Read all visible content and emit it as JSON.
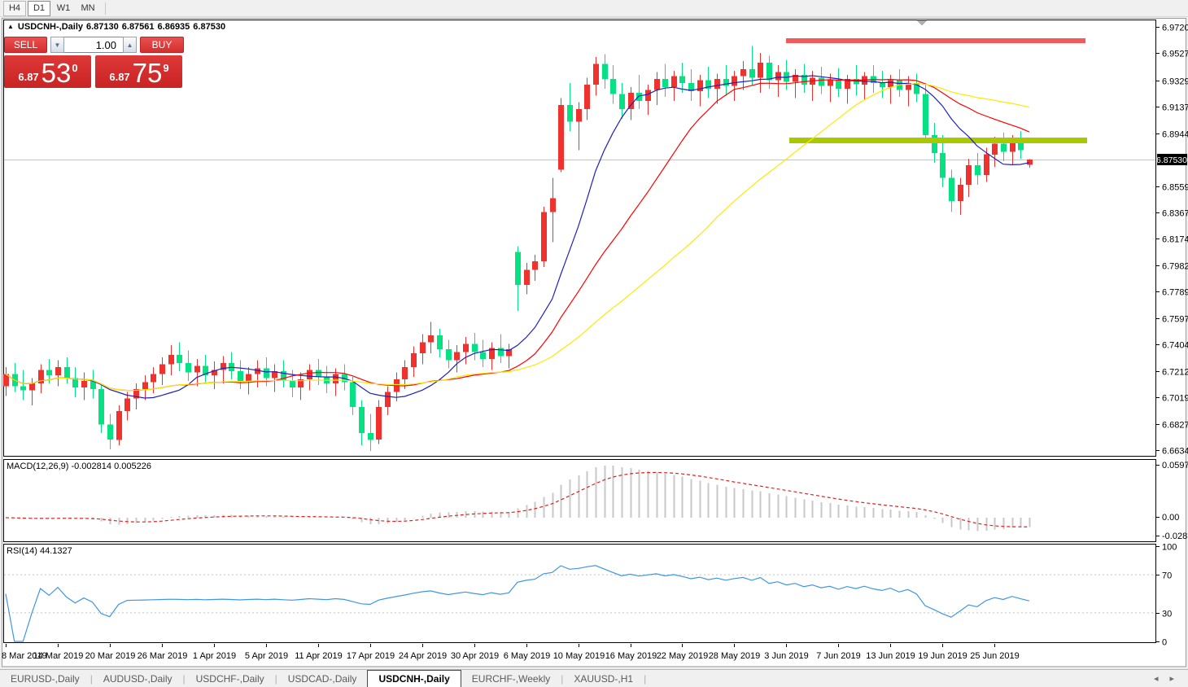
{
  "toolbar": {
    "timeframes": [
      {
        "label": "H4",
        "active": false
      },
      {
        "label": "D1",
        "active": true
      },
      {
        "label": "W1",
        "active": false
      },
      {
        "label": "MN",
        "active": false
      }
    ]
  },
  "window": {
    "symbol": "USDCNH-,Daily",
    "open": "6.87130",
    "high": "6.87561",
    "low": "6.86935",
    "close": "6.87530"
  },
  "trade_panel": {
    "sell_label": "SELL",
    "buy_label": "BUY",
    "volume": "1.00",
    "sell_price": {
      "prefix": "6.87",
      "big": "53",
      "sup": "0"
    },
    "buy_price": {
      "prefix": "6.87",
      "big": "75",
      "sup": "9"
    }
  },
  "indicator_labels": {
    "macd": "MACD(12,26,9) -0.002814 0.005226",
    "rsi": "RSI(14) 44.1327"
  },
  "axes": {
    "price_ticks": [
      "6.97200",
      "6.95275",
      "6.93295",
      "6.91370",
      "6.89445",
      "6.85595",
      "6.83670",
      "6.81745",
      "6.79820",
      "6.77895",
      "6.75970",
      "6.74045",
      "6.72120",
      "6.70195",
      "6.68270",
      "6.66345"
    ],
    "current_price": "6.87530",
    "macd_ticks": [
      "0.059758",
      "0.00",
      "-0.02816"
    ],
    "rsi_ticks": [
      "100",
      "70",
      "30",
      "0"
    ]
  },
  "tabbar": {
    "tabs": [
      {
        "label": "EURUSD-,Daily",
        "active": false
      },
      {
        "label": "AUDUSD-,Daily",
        "active": false
      },
      {
        "label": "USDCHF-,Daily",
        "active": false
      },
      {
        "label": "USDCAD-,Daily",
        "active": false
      },
      {
        "label": "USDCNH-,Daily",
        "active": true
      },
      {
        "label": "EURCHF-,Weekly",
        "active": false
      },
      {
        "label": "XAUUSD-,H1",
        "active": false
      }
    ],
    "scroll_left_icon": "◂",
    "scroll_right_icon": "▸"
  },
  "chart_data": {
    "type": "candlestick",
    "symbol": "USDCNH",
    "timeframe": "Daily",
    "title": "USDCNH-,Daily 6.87130 6.87561 6.86935 6.87530",
    "y_range": [
      6.66345,
      6.972
    ],
    "current_price": 6.8753,
    "up_color": "#F0322E",
    "down_color": "#06E183",
    "x_tick_interval": 6,
    "x_tick_labels": [
      "8 Mar 2019",
      "14 Mar 2019",
      "20 Mar 2019",
      "26 Mar 2019",
      "1 Apr 2019",
      "5 Apr 2019",
      "11 Apr 2019",
      "17 Apr 2019",
      "24 Apr 2019",
      "30 Apr 2019",
      "6 May 2019",
      "10 May 2019",
      "16 May 2019",
      "22 May 2019",
      "28 May 2019",
      "3 Jun 2019",
      "7 Jun 2019",
      "13 Jun 2019",
      "19 Jun 2019",
      "25 Jun 2019"
    ],
    "candles": [
      [
        6.71,
        6.724,
        6.703,
        6.719
      ],
      [
        6.719,
        6.727,
        6.706,
        6.71
      ],
      [
        6.71,
        6.722,
        6.7,
        6.707
      ],
      [
        6.707,
        6.716,
        6.696,
        6.712
      ],
      [
        6.712,
        6.726,
        6.705,
        6.722
      ],
      [
        6.722,
        6.73,
        6.712,
        6.718
      ],
      [
        6.718,
        6.729,
        6.71,
        6.724
      ],
      [
        6.724,
        6.731,
        6.712,
        6.716
      ],
      [
        6.716,
        6.724,
        6.702,
        6.709
      ],
      [
        6.709,
        6.72,
        6.7,
        6.714
      ],
      [
        6.714,
        6.722,
        6.701,
        6.708
      ],
      [
        6.708,
        6.712,
        6.676,
        6.682
      ],
      [
        6.682,
        6.69,
        6.664,
        6.671
      ],
      [
        6.671,
        6.696,
        6.667,
        6.692
      ],
      [
        6.692,
        6.706,
        6.685,
        6.701
      ],
      [
        6.701,
        6.712,
        6.693,
        6.708
      ],
      [
        6.708,
        6.718,
        6.7,
        6.713
      ],
      [
        6.713,
        6.724,
        6.705,
        6.719
      ],
      [
        6.719,
        6.731,
        6.711,
        6.726
      ],
      [
        6.726,
        6.74,
        6.718,
        6.733
      ],
      [
        6.733,
        6.742,
        6.721,
        6.727
      ],
      [
        6.727,
        6.736,
        6.714,
        6.72
      ],
      [
        6.72,
        6.73,
        6.71,
        6.725
      ],
      [
        6.725,
        6.733,
        6.713,
        6.718
      ],
      [
        6.718,
        6.728,
        6.708,
        6.722
      ],
      [
        6.722,
        6.732,
        6.712,
        6.727
      ],
      [
        6.727,
        6.735,
        6.715,
        6.721
      ],
      [
        6.721,
        6.729,
        6.708,
        6.714
      ],
      [
        6.714,
        6.724,
        6.704,
        6.719
      ],
      [
        6.719,
        6.729,
        6.709,
        6.723
      ],
      [
        6.723,
        6.731,
        6.71,
        6.716
      ],
      [
        6.716,
        6.726,
        6.706,
        6.721
      ],
      [
        6.721,
        6.729,
        6.709,
        6.714
      ],
      [
        6.714,
        6.722,
        6.702,
        6.709
      ],
      [
        6.709,
        6.72,
        6.7,
        6.715
      ],
      [
        6.715,
        6.726,
        6.707,
        6.722
      ],
      [
        6.722,
        6.73,
        6.711,
        6.717
      ],
      [
        6.717,
        6.725,
        6.705,
        6.712
      ],
      [
        6.712,
        6.723,
        6.703,
        6.719
      ],
      [
        6.719,
        6.726,
        6.707,
        6.713
      ],
      [
        6.713,
        6.717,
        6.689,
        6.695
      ],
      [
        6.695,
        6.7,
        6.667,
        6.676
      ],
      [
        6.676,
        6.69,
        6.663,
        6.671
      ],
      [
        6.671,
        6.7,
        6.668,
        6.695
      ],
      [
        6.695,
        6.71,
        6.689,
        6.706
      ],
      [
        6.706,
        6.72,
        6.699,
        6.715
      ],
      [
        6.715,
        6.729,
        6.708,
        6.724
      ],
      [
        6.724,
        6.739,
        6.717,
        6.734
      ],
      [
        6.734,
        6.748,
        6.726,
        6.742
      ],
      [
        6.742,
        6.757,
        6.734,
        6.747
      ],
      [
        6.747,
        6.752,
        6.731,
        6.737
      ],
      [
        6.737,
        6.744,
        6.723,
        6.729
      ],
      [
        6.729,
        6.74,
        6.72,
        6.735
      ],
      [
        6.735,
        6.746,
        6.726,
        6.741
      ],
      [
        6.741,
        6.749,
        6.729,
        6.735
      ],
      [
        6.735,
        6.744,
        6.724,
        6.73
      ],
      [
        6.73,
        6.742,
        6.722,
        6.738
      ],
      [
        6.738,
        6.748,
        6.727,
        6.732
      ],
      [
        6.732,
        6.741,
        6.723,
        6.737
      ],
      [
        6.808,
        6.812,
        6.765,
        6.784
      ],
      [
        6.784,
        6.8,
        6.777,
        6.795
      ],
      [
        6.795,
        6.806,
        6.787,
        6.801
      ],
      [
        6.801,
        6.841,
        6.797,
        6.837
      ],
      [
        6.837,
        6.862,
        6.815,
        6.847
      ],
      [
        6.868,
        6.92,
        6.866,
        6.915
      ],
      [
        6.915,
        6.931,
        6.896,
        6.903
      ],
      [
        6.903,
        6.917,
        6.882,
        6.912
      ],
      [
        6.912,
        6.935,
        6.904,
        6.93
      ],
      [
        6.93,
        6.95,
        6.922,
        6.945
      ],
      [
        6.945,
        6.952,
        6.927,
        6.934
      ],
      [
        6.934,
        6.944,
        6.916,
        6.923
      ],
      [
        6.923,
        6.931,
        6.905,
        6.912
      ],
      [
        6.912,
        6.928,
        6.904,
        6.924
      ],
      [
        6.924,
        6.937,
        6.912,
        6.918
      ],
      [
        6.918,
        6.93,
        6.908,
        6.926
      ],
      [
        6.926,
        6.939,
        6.915,
        6.934
      ],
      [
        6.934,
        6.945,
        6.921,
        6.928
      ],
      [
        6.928,
        6.94,
        6.918,
        6.936
      ],
      [
        6.936,
        6.946,
        6.924,
        6.931
      ],
      [
        6.931,
        6.941,
        6.918,
        6.925
      ],
      [
        6.925,
        6.937,
        6.914,
        6.933
      ],
      [
        6.933,
        6.943,
        6.92,
        6.927
      ],
      [
        6.927,
        6.938,
        6.916,
        6.934
      ],
      [
        6.934,
        6.944,
        6.922,
        6.929
      ],
      [
        6.929,
        6.94,
        6.918,
        6.936
      ],
      [
        6.936,
        6.947,
        6.926,
        6.941
      ],
      [
        6.941,
        6.958,
        6.929,
        6.935
      ],
      [
        6.935,
        6.953,
        6.924,
        6.946
      ],
      [
        6.946,
        6.951,
        6.927,
        6.933
      ],
      [
        6.933,
        6.944,
        6.921,
        6.939
      ],
      [
        6.939,
        6.948,
        6.926,
        6.932
      ],
      [
        6.932,
        6.941,
        6.92,
        6.937
      ],
      [
        6.937,
        6.945,
        6.924,
        6.93
      ],
      [
        6.93,
        6.94,
        6.918,
        6.935
      ],
      [
        6.935,
        6.943,
        6.923,
        6.929
      ],
      [
        6.929,
        6.938,
        6.917,
        6.933
      ],
      [
        6.933,
        6.942,
        6.921,
        6.927
      ],
      [
        6.927,
        6.937,
        6.916,
        6.934
      ],
      [
        6.934,
        6.944,
        6.922,
        6.93
      ],
      [
        6.93,
        6.939,
        6.919,
        6.936
      ],
      [
        6.936,
        6.944,
        6.924,
        6.931
      ],
      [
        6.931,
        6.94,
        6.92,
        6.928
      ],
      [
        6.928,
        6.937,
        6.916,
        6.933
      ],
      [
        6.933,
        6.941,
        6.921,
        6.926
      ],
      [
        6.926,
        6.936,
        6.914,
        6.931
      ],
      [
        6.931,
        6.938,
        6.917,
        6.923
      ],
      [
        6.923,
        6.931,
        6.888,
        6.893
      ],
      [
        6.893,
        6.902,
        6.873,
        6.88
      ],
      [
        6.88,
        6.893,
        6.855,
        6.862
      ],
      [
        6.862,
        6.868,
        6.837,
        6.845
      ],
      [
        6.845,
        6.862,
        6.835,
        6.857
      ],
      [
        6.857,
        6.876,
        6.848,
        6.871
      ],
      [
        6.871,
        6.88,
        6.857,
        6.864
      ],
      [
        6.864,
        6.884,
        6.859,
        6.879
      ],
      [
        6.879,
        6.892,
        6.87,
        6.887
      ],
      [
        6.887,
        6.895,
        6.874,
        6.881
      ],
      [
        6.881,
        6.893,
        6.871,
        6.889
      ],
      [
        6.889,
        6.896,
        6.876,
        6.882
      ],
      [
        6.8713,
        6.87561,
        6.86935,
        6.8753
      ]
    ],
    "moving_averages": [
      {
        "period": 10,
        "color": "#2020C0"
      },
      {
        "period": 21,
        "color": "#FF0000"
      },
      {
        "period": 40,
        "color": "#FFE800"
      }
    ],
    "objects": {
      "resistance_band": {
        "price": 6.962,
        "from_index": 90,
        "to_index": 124.5,
        "color": "#F25B5B"
      },
      "support_band": {
        "price": 6.8895,
        "from_index": 90.3,
        "to_index": 124.6,
        "color": "#AAC800"
      }
    },
    "indicators": {
      "macd": {
        "params": [
          12,
          26,
          9
        ],
        "main_current": -0.002814,
        "signal_current": 0.005226,
        "scale_max": 0.059758,
        "scale_min": -0.02816,
        "histogram_color": "#C8C8C8",
        "signal_color": "#E02020"
      },
      "rsi": {
        "period": 14,
        "current": 44.1327,
        "color": "#3E96E6",
        "levels": [
          70,
          30
        ],
        "level_color": "#C4C4C4"
      }
    }
  }
}
